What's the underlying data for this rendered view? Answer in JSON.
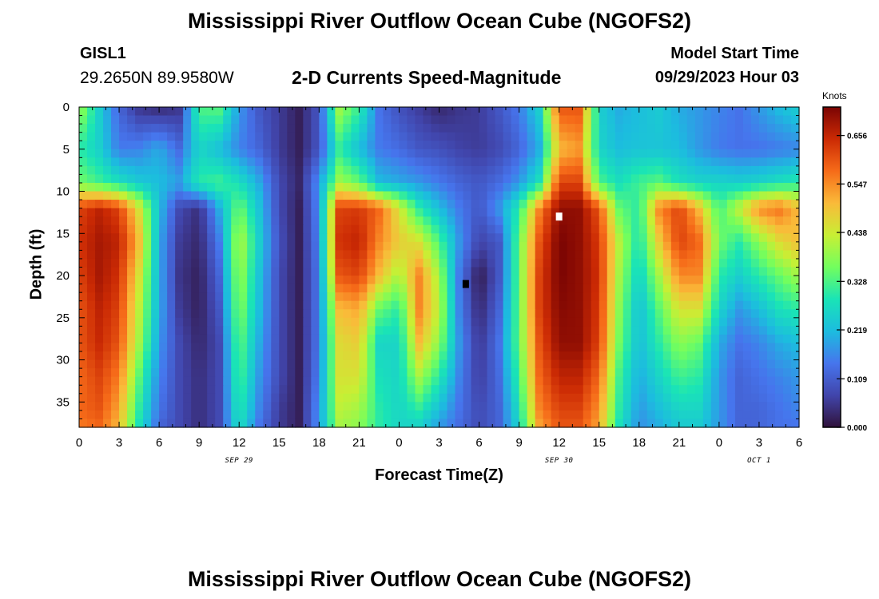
{
  "header": {
    "title": "Mississippi River Outflow Ocean Cube (NGOFS2)",
    "station": "GISL1",
    "coordinates": "29.2650N  89.9580W",
    "subtitle": "2-D Currents Speed-Magnitude",
    "model_start_label": "Model Start Time",
    "model_start_value": "09/29/2023 Hour 03"
  },
  "footer": {
    "title": "Mississippi River Outflow Ocean Cube (NGOFS2)"
  },
  "chart_data": {
    "type": "heatmap",
    "title": "2-D Currents Speed-Magnitude",
    "xlabel": "Forecast Time(Z)",
    "ylabel": "Depth (ft)",
    "xlim": [
      0,
      54
    ],
    "ylim": [
      0,
      38
    ],
    "y_inverted": true,
    "x_tick_values": [
      0,
      3,
      6,
      9,
      12,
      15,
      18,
      21,
      24,
      27,
      30,
      33,
      36,
      39,
      42,
      45,
      48,
      51,
      54
    ],
    "x_tick_labels": [
      "0",
      "3",
      "6",
      "9",
      "12",
      "15",
      "18",
      "21",
      "0",
      "3",
      "6",
      "9",
      "12",
      "15",
      "18",
      "21",
      "0",
      "3",
      "6"
    ],
    "y_tick_values": [
      0,
      5,
      10,
      15,
      20,
      25,
      30,
      35
    ],
    "y_tick_labels": [
      "0",
      "5",
      "10",
      "15",
      "20",
      "25",
      "30",
      "35"
    ],
    "date_labels": [
      {
        "label": "SEP 29",
        "x": 12
      },
      {
        "label": "SEP 30",
        "x": 36
      },
      {
        "label": "OCT 1",
        "x": 51
      }
    ],
    "colorbar": {
      "unit": "Knots",
      "min": 0.0,
      "max": 0.72,
      "tick_values": [
        0.0,
        0.109,
        0.219,
        0.328,
        0.438,
        0.547,
        0.656
      ],
      "tick_labels": [
        "0.000",
        "0.109",
        "0.219",
        "0.328",
        "0.438",
        "0.547",
        "0.656"
      ],
      "colormap": "turbo"
    },
    "markers": [
      {
        "name": "min-marker",
        "x": 29,
        "y": 21,
        "color": "#000000"
      },
      {
        "name": "max-marker",
        "x": 36,
        "y": 13,
        "color": "#ffffff"
      }
    ],
    "grid": {
      "x": [
        0,
        1.5,
        3,
        4.5,
        6,
        7.5,
        9,
        10.5,
        12,
        13.5,
        15,
        16.5,
        18,
        19.5,
        21,
        22.5,
        24,
        25.5,
        27,
        28.5,
        30,
        31.5,
        33,
        34.5,
        36,
        37.5,
        39,
        40.5,
        42,
        43.5,
        45,
        46.5,
        48,
        49.5,
        51,
        52.5,
        54
      ],
      "y": [
        0,
        5,
        9,
        12,
        16,
        20,
        24,
        28,
        32,
        36,
        38
      ],
      "values": [
        [
          0.4,
          0.25,
          0.12,
          0.05,
          0.03,
          0.05,
          0.33,
          0.34,
          0.18,
          0.1,
          0.06,
          0.02,
          0.1,
          0.4,
          0.31,
          0.14,
          0.09,
          0.06,
          0.03,
          0.05,
          0.06,
          0.1,
          0.15,
          0.25,
          0.6,
          0.6,
          0.25,
          0.2,
          0.22,
          0.24,
          0.2,
          0.18,
          0.16,
          0.14,
          0.18,
          0.22,
          0.25
        ],
        [
          0.3,
          0.25,
          0.15,
          0.16,
          0.2,
          0.13,
          0.26,
          0.22,
          0.16,
          0.12,
          0.06,
          0.02,
          0.1,
          0.3,
          0.22,
          0.15,
          0.13,
          0.1,
          0.09,
          0.07,
          0.06,
          0.08,
          0.12,
          0.2,
          0.5,
          0.53,
          0.26,
          0.22,
          0.23,
          0.23,
          0.22,
          0.18,
          0.15,
          0.14,
          0.14,
          0.15,
          0.16
        ],
        [
          0.36,
          0.32,
          0.28,
          0.24,
          0.22,
          0.19,
          0.3,
          0.32,
          0.28,
          0.2,
          0.08,
          0.03,
          0.18,
          0.4,
          0.35,
          0.22,
          0.2,
          0.18,
          0.15,
          0.12,
          0.1,
          0.13,
          0.18,
          0.28,
          0.62,
          0.62,
          0.33,
          0.28,
          0.32,
          0.34,
          0.28,
          0.26,
          0.26,
          0.25,
          0.26,
          0.28,
          0.3
        ],
        [
          0.62,
          0.66,
          0.62,
          0.45,
          0.22,
          0.08,
          0.04,
          0.2,
          0.36,
          0.23,
          0.08,
          0.02,
          0.17,
          0.62,
          0.63,
          0.58,
          0.45,
          0.3,
          0.22,
          0.15,
          0.1,
          0.18,
          0.3,
          0.55,
          0.7,
          0.7,
          0.6,
          0.35,
          0.3,
          0.55,
          0.62,
          0.5,
          0.32,
          0.43,
          0.55,
          0.57,
          0.5
        ],
        [
          0.64,
          0.68,
          0.66,
          0.5,
          0.2,
          0.06,
          0.03,
          0.15,
          0.42,
          0.25,
          0.09,
          0.02,
          0.16,
          0.64,
          0.66,
          0.55,
          0.48,
          0.45,
          0.33,
          0.18,
          0.07,
          0.1,
          0.35,
          0.6,
          0.72,
          0.7,
          0.63,
          0.42,
          0.28,
          0.48,
          0.62,
          0.58,
          0.36,
          0.3,
          0.38,
          0.46,
          0.5
        ],
        [
          0.62,
          0.68,
          0.64,
          0.45,
          0.2,
          0.05,
          0.02,
          0.12,
          0.4,
          0.23,
          0.08,
          0.02,
          0.15,
          0.6,
          0.62,
          0.5,
          0.4,
          0.55,
          0.4,
          0.15,
          0.01,
          0.1,
          0.35,
          0.62,
          0.72,
          0.7,
          0.64,
          0.4,
          0.25,
          0.4,
          0.55,
          0.55,
          0.3,
          0.25,
          0.3,
          0.35,
          0.4
        ],
        [
          0.6,
          0.66,
          0.62,
          0.42,
          0.2,
          0.06,
          0.02,
          0.1,
          0.38,
          0.22,
          0.08,
          0.02,
          0.15,
          0.5,
          0.52,
          0.35,
          0.3,
          0.55,
          0.42,
          0.16,
          0.03,
          0.12,
          0.35,
          0.62,
          0.71,
          0.7,
          0.63,
          0.38,
          0.22,
          0.34,
          0.45,
          0.45,
          0.26,
          0.18,
          0.22,
          0.28,
          0.3
        ],
        [
          0.6,
          0.65,
          0.6,
          0.4,
          0.18,
          0.08,
          0.03,
          0.08,
          0.35,
          0.2,
          0.08,
          0.02,
          0.15,
          0.46,
          0.48,
          0.26,
          0.26,
          0.5,
          0.38,
          0.18,
          0.05,
          0.14,
          0.35,
          0.6,
          0.7,
          0.7,
          0.62,
          0.36,
          0.22,
          0.3,
          0.38,
          0.35,
          0.2,
          0.14,
          0.16,
          0.2,
          0.22
        ],
        [
          0.58,
          0.62,
          0.56,
          0.34,
          0.16,
          0.08,
          0.04,
          0.08,
          0.33,
          0.18,
          0.08,
          0.02,
          0.16,
          0.45,
          0.45,
          0.28,
          0.26,
          0.4,
          0.3,
          0.16,
          0.06,
          0.13,
          0.32,
          0.58,
          0.66,
          0.66,
          0.58,
          0.32,
          0.2,
          0.26,
          0.32,
          0.3,
          0.18,
          0.12,
          0.14,
          0.16,
          0.18
        ],
        [
          0.58,
          0.6,
          0.52,
          0.3,
          0.14,
          0.08,
          0.04,
          0.08,
          0.3,
          0.16,
          0.06,
          0.02,
          0.18,
          0.42,
          0.4,
          0.3,
          0.26,
          0.3,
          0.22,
          0.14,
          0.08,
          0.12,
          0.28,
          0.55,
          0.62,
          0.62,
          0.54,
          0.3,
          0.18,
          0.22,
          0.26,
          0.26,
          0.18,
          0.12,
          0.12,
          0.14,
          0.16
        ],
        [
          0.56,
          0.58,
          0.5,
          0.28,
          0.12,
          0.08,
          0.04,
          0.08,
          0.28,
          0.14,
          0.06,
          0.02,
          0.18,
          0.4,
          0.38,
          0.3,
          0.26,
          0.25,
          0.18,
          0.13,
          0.08,
          0.12,
          0.26,
          0.52,
          0.6,
          0.6,
          0.52,
          0.28,
          0.17,
          0.2,
          0.24,
          0.24,
          0.18,
          0.12,
          0.12,
          0.14,
          0.14
        ]
      ]
    }
  }
}
